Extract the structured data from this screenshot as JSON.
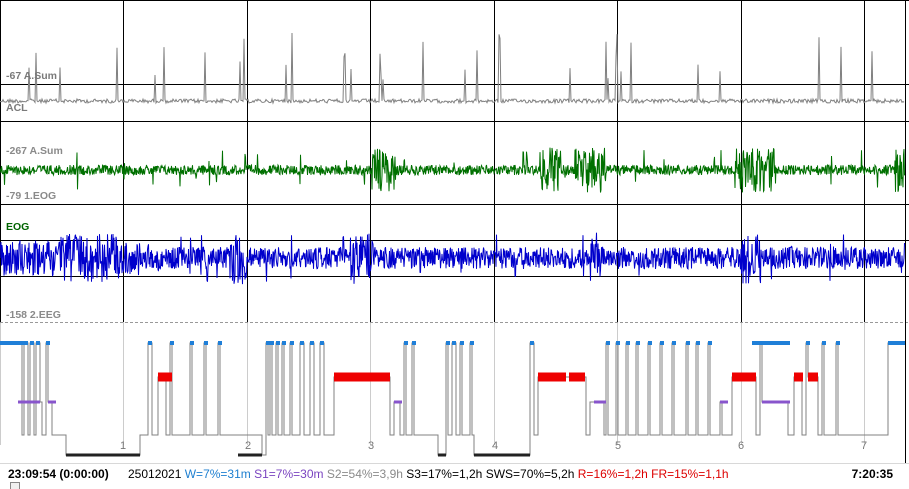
{
  "channels": [
    {
      "label_top": "-67 A.Sum",
      "label_bottom": "ACL",
      "color": "#808080"
    },
    {
      "label_top": "-267 A.Sum",
      "label_bottom": "-79 1.EOG",
      "color": "#007000"
    },
    {
      "label_top": "EOG",
      "label_bottom": "-158 2.EEG",
      "color": "#0000cc"
    }
  ],
  "hypnogram": {
    "cycle_numbers": [
      "1",
      "2",
      "3",
      "4",
      "5",
      "6",
      "7"
    ],
    "colors": {
      "wake": "#1f7fd8",
      "rem": "#ee0000",
      "s1": "#8855cc",
      "sws": "#222222",
      "line": "#808080"
    }
  },
  "status": {
    "start_time": "23:09:54 (0:00:00)",
    "date": "25012021",
    "w": "W=7%=31m",
    "s1": "S1=7%=30m",
    "s2": "S2=54%=3,9h",
    "s3": "S3=17%=1,2h",
    "sws": "SWS=70%=5,2h",
    "r": "R=16%=1,2h",
    "fr": "FR=15%=1,1h",
    "end_time": "7:20:35",
    "colors": {
      "w": "#1e7fd0",
      "s1": "#7a44c0",
      "s2": "#8a8a8a",
      "s3": "#000000",
      "sws": "#000000",
      "r": "#dd0000",
      "fr": "#dd0000"
    }
  }
}
